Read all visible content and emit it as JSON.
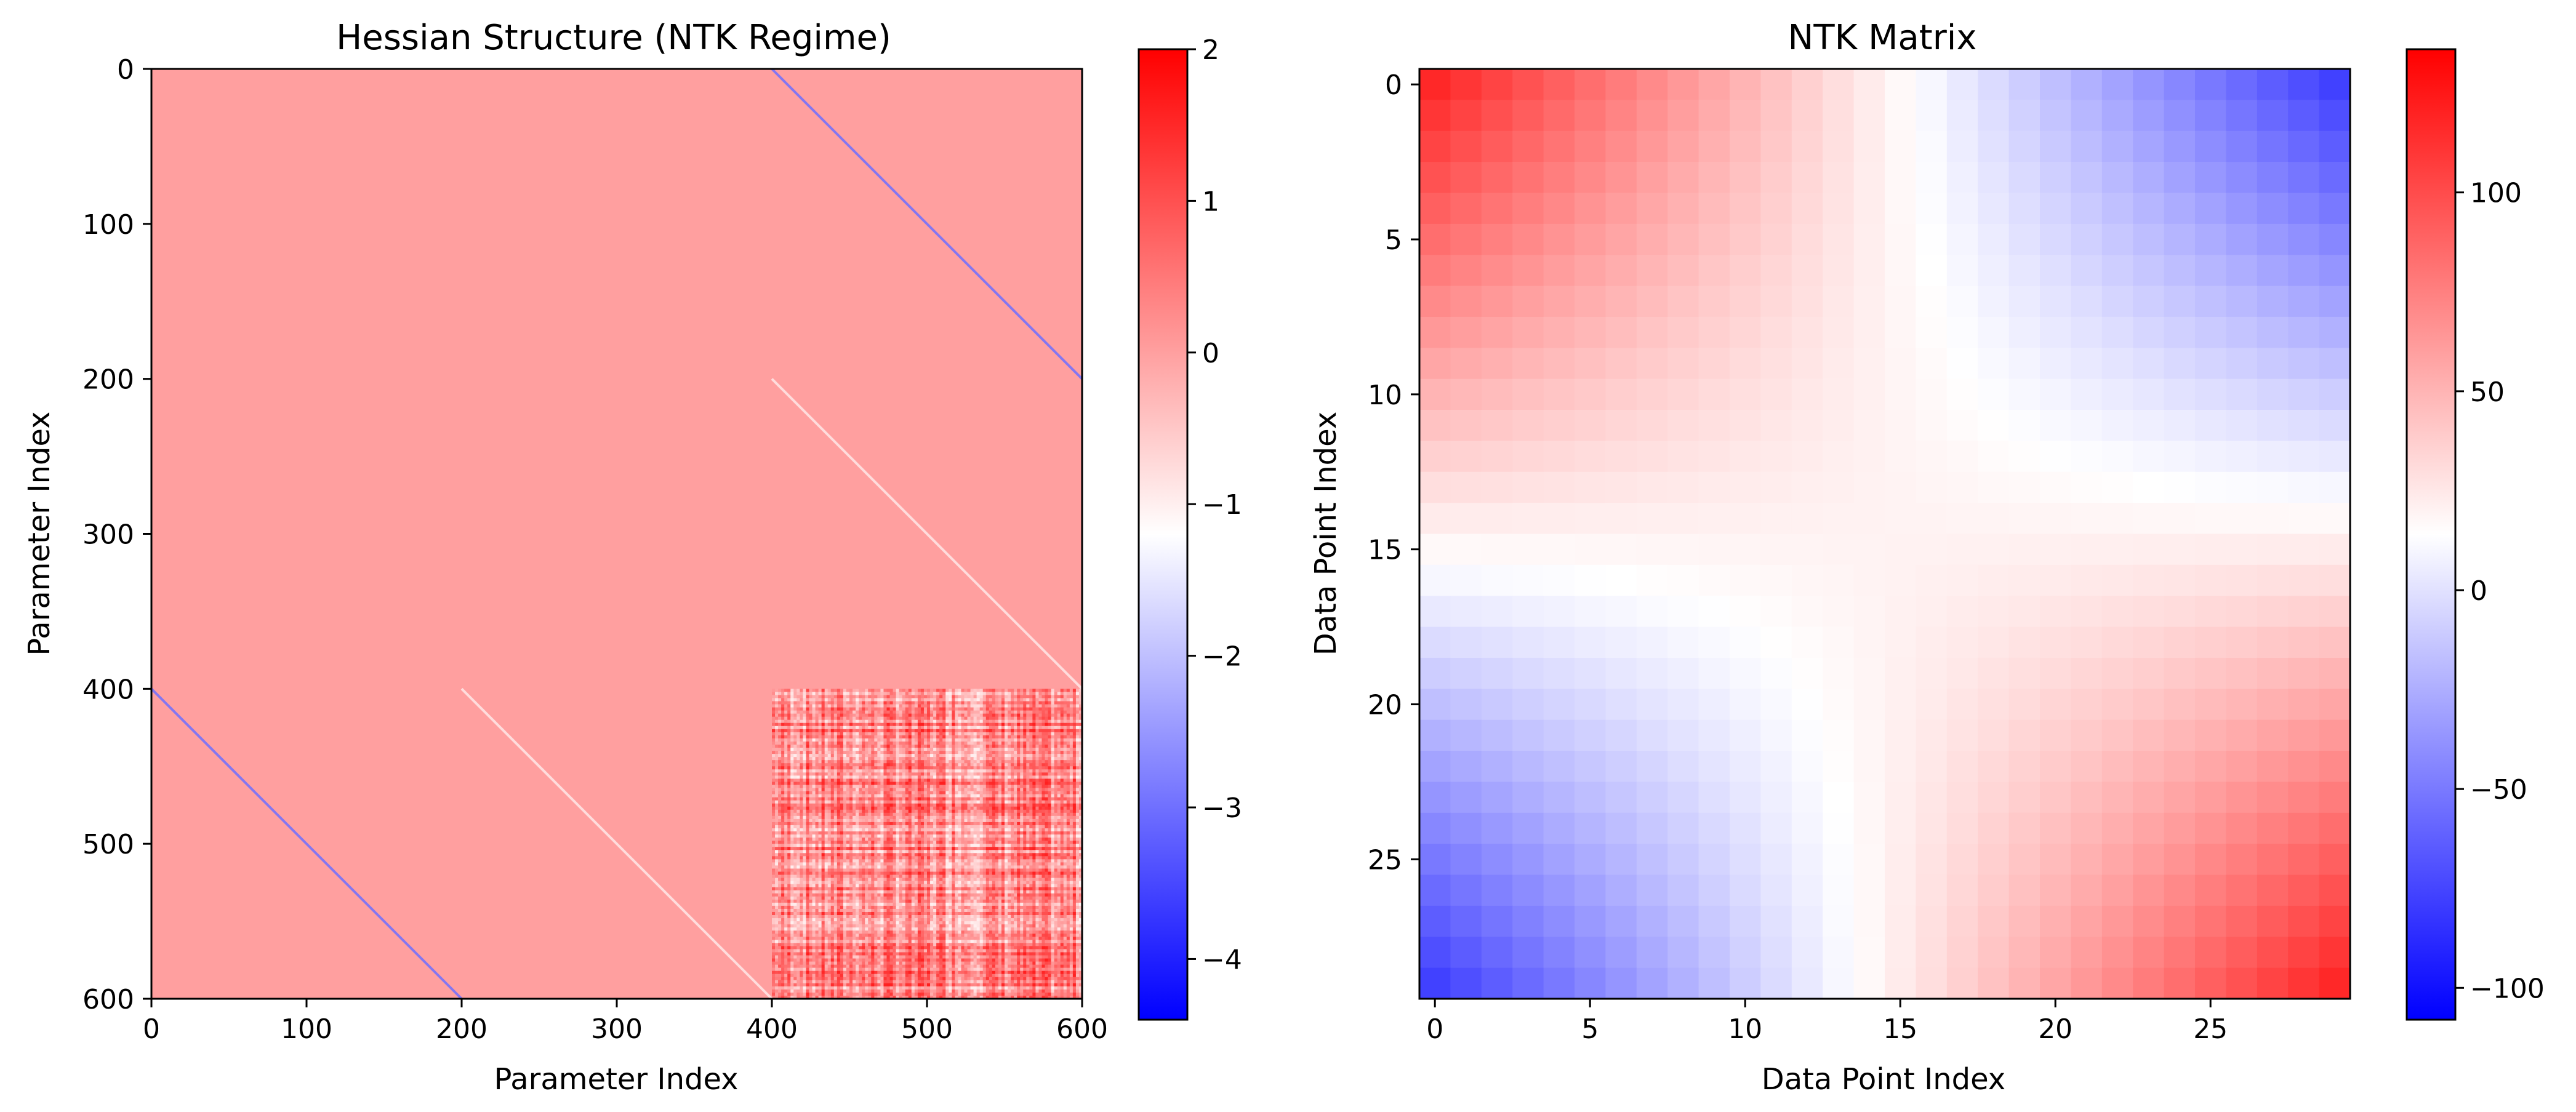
{
  "chart_data": [
    {
      "type": "heatmap",
      "title": "Hessian Structure (NTK Regime)",
      "xlabel": "Parameter Index",
      "ylabel": "Parameter Index",
      "xlim": [
        0,
        600
      ],
      "ylim": [
        600,
        0
      ],
      "xticks": [
        0,
        100,
        200,
        300,
        400,
        500,
        600
      ],
      "yticks": [
        0,
        100,
        200,
        300,
        400,
        500,
        600
      ],
      "colormap": "bwr",
      "colorbar": {
        "min": -4.4,
        "max": 2.0,
        "ticks": [
          2,
          1,
          0,
          -1,
          -2,
          -3,
          -4
        ]
      },
      "structure": {
        "background_value": 0.0,
        "diagonal_bands": [
          {
            "x_from": 400,
            "y_from": 0,
            "x_to": 600,
            "y_to": 200,
            "value": -3.0
          },
          {
            "x_from": 0,
            "y_from": 400,
            "x_to": 200,
            "y_to": 600,
            "value": -3.0
          },
          {
            "x_from": 400,
            "y_from": 200,
            "x_to": 600,
            "y_to": 400,
            "value": -0.9
          },
          {
            "x_from": 200,
            "y_from": 400,
            "x_to": 400,
            "y_to": 600,
            "value": -0.9
          }
        ],
        "noisy_block": {
          "x_range": [
            400,
            600
          ],
          "y_range": [
            400,
            600
          ],
          "value_range": [
            -1.0,
            1.6
          ]
        }
      }
    },
    {
      "type": "heatmap",
      "title": "NTK Matrix",
      "xlabel": "Data Point Index",
      "ylabel": "Data Point Index",
      "size": 30,
      "xticks": [
        0,
        5,
        10,
        15,
        20,
        25
      ],
      "yticks": [
        0,
        5,
        10,
        15,
        20,
        25
      ],
      "colormap": "bwr",
      "colorbar": {
        "min": -108,
        "max": 136,
        "ticks": [
          100,
          50,
          0,
          -50,
          -100
        ]
      },
      "values_rule": "K[i][j] ≈ 20 + 0.46 * (i - 14.5) * (j - 14.5)",
      "corner_values": {
        "top_left": 136,
        "top_right": -108,
        "bottom_left": -108,
        "bottom_right": 136
      }
    }
  ],
  "colors": {
    "low": "#0000ff",
    "mid": "#ffffff",
    "high": "#ff0000"
  }
}
